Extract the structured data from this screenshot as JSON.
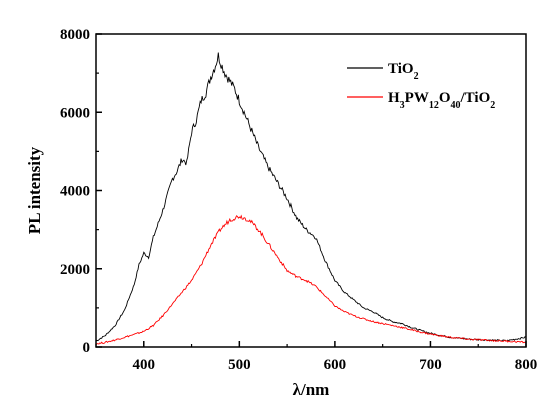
{
  "chart_data": {
    "type": "line",
    "xlabel": "λ/nm",
    "ylabel": "PL intensity",
    "xlim": [
      350,
      800
    ],
    "ylim": [
      0,
      8000
    ],
    "xticks": [
      400,
      500,
      600,
      700,
      800
    ],
    "yticks": [
      0,
      2000,
      4000,
      6000,
      8000
    ],
    "grid": false,
    "legend_position": "top-right",
    "series": [
      {
        "name": "TiO2",
        "color": "#000000",
        "x": [
          350,
          360,
          370,
          380,
          390,
          395,
          400,
          405,
          410,
          420,
          430,
          435,
          440,
          445,
          450,
          455,
          460,
          465,
          470,
          475,
          478,
          480,
          485,
          490,
          495,
          500,
          510,
          520,
          530,
          540,
          550,
          560,
          570,
          580,
          590,
          600,
          610,
          620,
          630,
          640,
          650,
          660,
          670,
          680,
          690,
          700,
          720,
          740,
          760,
          780,
          800
        ],
        "y": [
          150,
          300,
          550,
          950,
          1600,
          2100,
          2400,
          2300,
          2800,
          3500,
          4300,
          4500,
          4800,
          4700,
          5500,
          5800,
          6300,
          6500,
          6900,
          7200,
          7450,
          7300,
          7000,
          6800,
          6600,
          6300,
          5700,
          5100,
          4600,
          4200,
          3800,
          3300,
          3000,
          2800,
          2200,
          1700,
          1400,
          1200,
          1000,
          900,
          750,
          650,
          600,
          500,
          420,
          350,
          250,
          200,
          180,
          160,
          250
        ]
      },
      {
        "name": "H3PW12O40/TiO2",
        "color": "#ff0000",
        "x": [
          350,
          360,
          370,
          380,
          390,
          400,
          410,
          420,
          430,
          440,
          450,
          460,
          470,
          480,
          490,
          500,
          510,
          520,
          530,
          540,
          550,
          560,
          570,
          580,
          590,
          600,
          610,
          620,
          630,
          640,
          650,
          660,
          670,
          680,
          690,
          700,
          720,
          740,
          760,
          780,
          800
        ],
        "y": [
          80,
          120,
          180,
          250,
          320,
          400,
          550,
          800,
          1100,
          1400,
          1700,
          2100,
          2600,
          3000,
          3250,
          3350,
          3250,
          3000,
          2650,
          2300,
          1950,
          1800,
          1700,
          1550,
          1300,
          1050,
          900,
          800,
          720,
          650,
          600,
          550,
          500,
          440,
          380,
          330,
          250,
          200,
          170,
          150,
          120
        ]
      }
    ]
  },
  "legend": {
    "items": [
      {
        "base": "TiO",
        "sub": "2",
        "color": "#000000"
      },
      {
        "parts": [
          {
            "t": "H",
            "s": false
          },
          {
            "t": "3",
            "s": true
          },
          {
            "t": "PW",
            "s": false
          },
          {
            "t": "12",
            "s": true
          },
          {
            "t": "O",
            "s": false
          },
          {
            "t": "40",
            "s": true
          },
          {
            "t": "/TiO",
            "s": false
          },
          {
            "t": "2",
            "s": true
          }
        ],
        "color": "#ff0000"
      }
    ]
  }
}
